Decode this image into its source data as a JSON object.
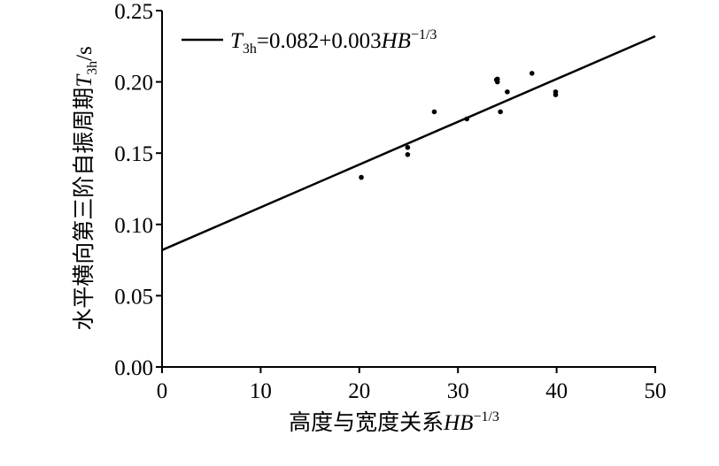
{
  "chart_data": {
    "type": "scatter",
    "x_label": [
      "高度与宽度关系",
      "HB",
      "−1/3"
    ],
    "y_label": [
      "水平横向第三阶自振周期",
      "T",
      "3h",
      "/s"
    ],
    "xlim": [
      0,
      50
    ],
    "xticks": [
      0,
      10,
      20,
      30,
      40,
      50
    ],
    "ylim": [
      0,
      0.25
    ],
    "yticks": [
      {
        "value": 0,
        "label": "0.00"
      },
      0.05,
      {
        "value": 0.1,
        "label": "0.10"
      },
      0.15,
      {
        "value": 0.2,
        "label": "0.20"
      },
      0.25
    ],
    "series": [
      {
        "type": "scatter",
        "color": "#000000",
        "x": [
          20.2,
          24.9,
          24.9,
          27.6,
          30.9,
          33.9,
          34.0,
          34.0,
          34.3,
          35.0,
          37.5,
          39.9,
          39.9
        ],
        "values": [
          0.133,
          0.154,
          0.149,
          0.179,
          0.174,
          0.2015,
          0.2,
          0.202,
          0.179,
          0.193,
          0.206,
          0.193,
          0.191
        ]
      },
      {
        "type": "line",
        "color": "#000000",
        "name": [
          "T",
          "3h",
          "=0.082+0.003",
          "HB",
          "−1/3"
        ],
        "x": [
          0,
          50
        ],
        "values": [
          0.082,
          0.232
        ]
      }
    ],
    "legend": "upper left"
  }
}
